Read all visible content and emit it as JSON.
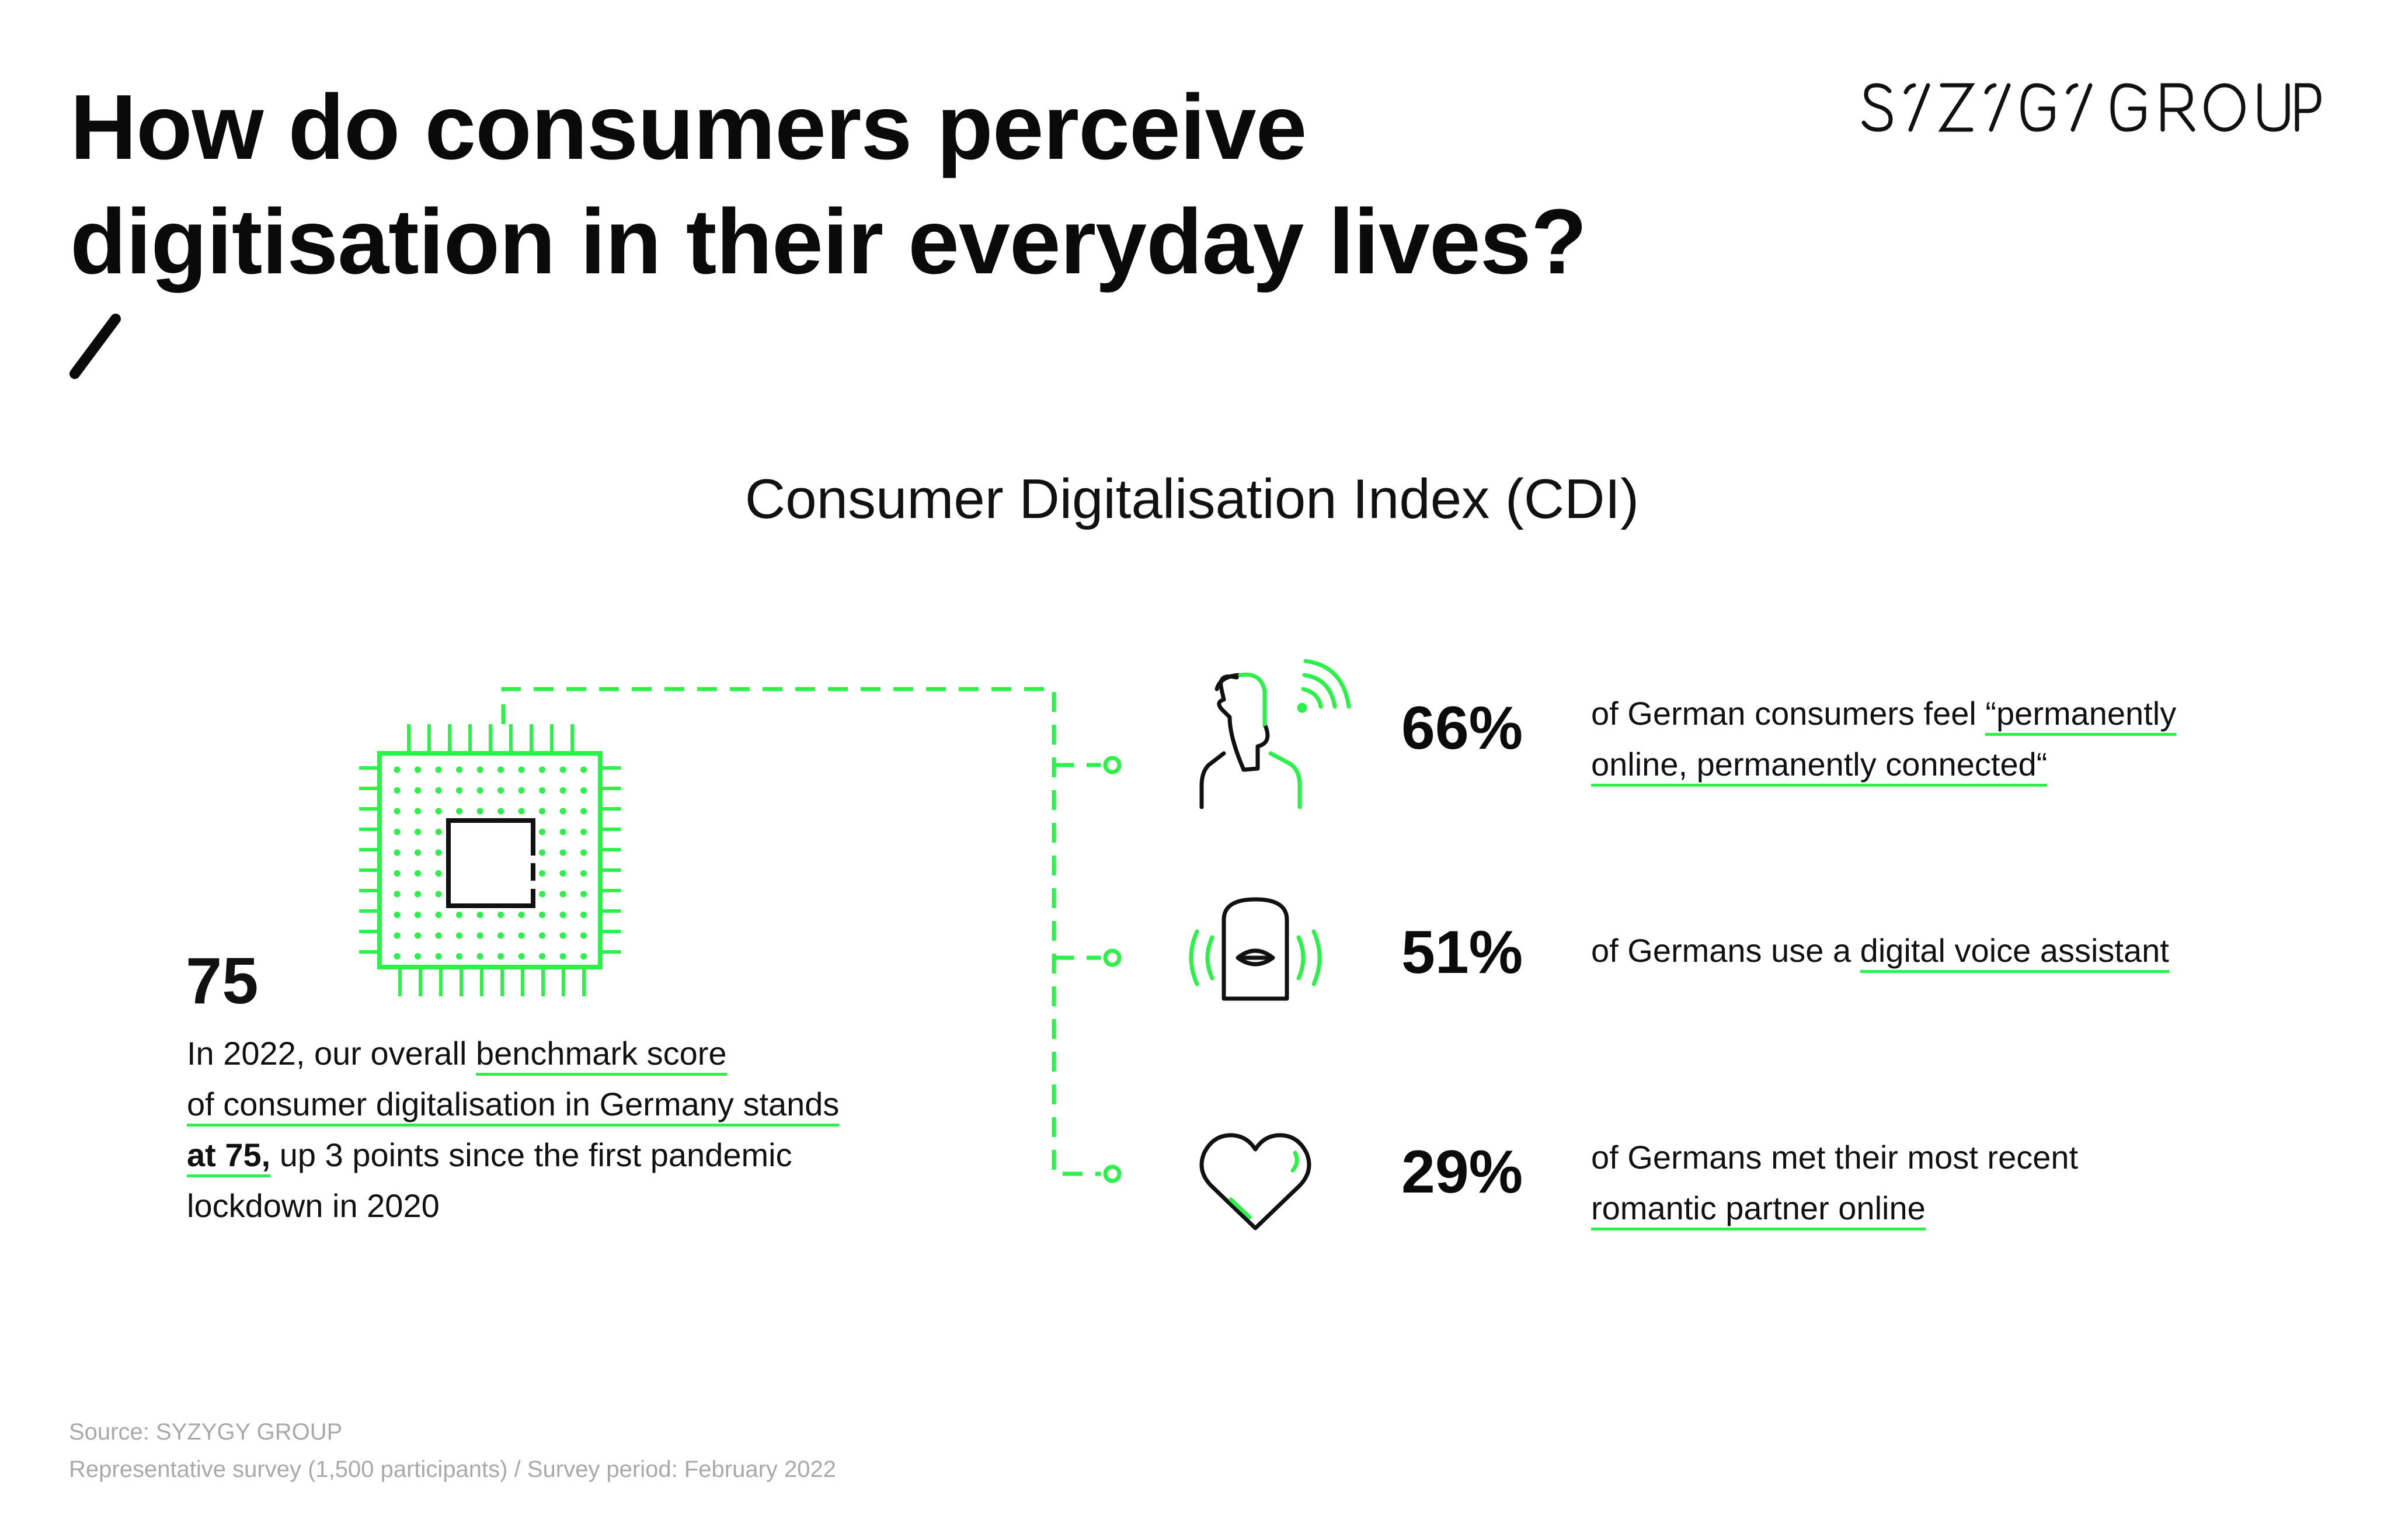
{
  "header": {
    "title_line1": "How do consumers perceive",
    "title_line2": "digitisation in their everyday lives?",
    "logo_text": "SYZYGY GROUP"
  },
  "subtitle": "Consumer Digitalisation Index (CDI)",
  "score": {
    "value": "75",
    "text_part1": "In 2022, our overall ",
    "text_link1": "benchmark score",
    "text_link2": "of consumer digitalisation in Germany stands",
    "text_link3": "at 75,",
    "text_part2": " up 3 points since the first pandemic",
    "text_part3": "lockdown in 2020"
  },
  "stats": [
    {
      "percent": "66%",
      "text_plain": "of German consumers feel ",
      "text_link_a": "“permanently",
      "text_link_b": "online, permanently  connected“",
      "icon": "person-connected-icon"
    },
    {
      "percent": "51%",
      "text_plain": "of Germans use a ",
      "text_link_a": "digital voice assistant",
      "icon": "voice-assistant-icon"
    },
    {
      "percent": "29%",
      "text_plain": "of Germans met their most recent",
      "text_link_a": "romantic partner online",
      "icon": "heart-icon"
    }
  ],
  "footer": {
    "source": "Source: SYZYGY GROUP",
    "survey": "Representative survey (1,500 participants) / Survey period: February 2022"
  },
  "colors": {
    "accent": "#2ef04a",
    "text": "#111111",
    "muted": "#a9a9a9"
  }
}
